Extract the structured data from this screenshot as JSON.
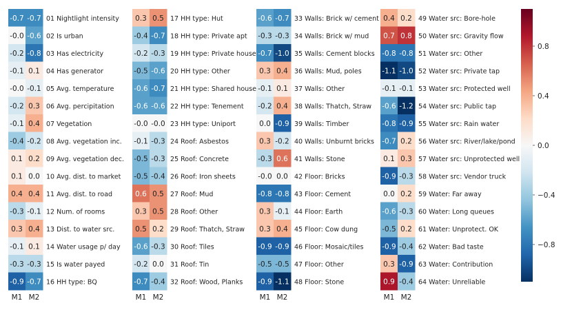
{
  "chart_data": {
    "type": "heatmap",
    "columns": [
      "M1",
      "M2"
    ],
    "panels": [
      {
        "rows": [
          {
            "label": "01 Nightlight intensity",
            "values": [
              -0.7,
              -0.7
            ],
            "text": [
              "-0.7",
              "-0.7"
            ]
          },
          {
            "label": "02 Is urban",
            "values": [
              0.0,
              -0.6
            ],
            "text": [
              "-0.0",
              "-0.6"
            ]
          },
          {
            "label": "03 Has electricity",
            "values": [
              -0.2,
              -0.8
            ],
            "text": [
              "-0.2",
              "-0.8"
            ]
          },
          {
            "label": "04 Has generator",
            "values": [
              -0.1,
              0.1
            ],
            "text": [
              "-0.1",
              "0.1"
            ]
          },
          {
            "label": "05 Avg. temperature",
            "values": [
              0.0,
              -0.1
            ],
            "text": [
              "-0.0",
              "-0.1"
            ]
          },
          {
            "label": "06 Avg. percipitation",
            "values": [
              -0.2,
              0.3
            ],
            "text": [
              "-0.2",
              "0.3"
            ]
          },
          {
            "label": "07 Vegetation",
            "values": [
              -0.1,
              0.4
            ],
            "text": [
              "-0.1",
              "0.4"
            ]
          },
          {
            "label": "08 Avg. vegetation inc.",
            "values": [
              -0.4,
              -0.2
            ],
            "text": [
              "-0.4",
              "-0.2"
            ]
          },
          {
            "label": "09 Avg. vegetation dec.",
            "values": [
              0.1,
              0.2
            ],
            "text": [
              "0.1",
              "0.2"
            ]
          },
          {
            "label": "10 Avg. dist. to market",
            "values": [
              0.1,
              0.0
            ],
            "text": [
              "0.1",
              "0.0"
            ]
          },
          {
            "label": "11 Avg. dist. to road",
            "values": [
              0.4,
              0.4
            ],
            "text": [
              "0.4",
              "0.4"
            ]
          },
          {
            "label": "12 Num. of rooms",
            "values": [
              -0.3,
              -0.1
            ],
            "text": [
              "-0.3",
              "-0.1"
            ]
          },
          {
            "label": "13 Dist. to water src.",
            "values": [
              0.3,
              0.4
            ],
            "text": [
              "0.3",
              "0.4"
            ]
          },
          {
            "label": "14 Water usage p/ day",
            "values": [
              -0.1,
              0.1
            ],
            "text": [
              "-0.1",
              "0.1"
            ]
          },
          {
            "label": "15 Is water payed",
            "values": [
              -0.3,
              -0.3
            ],
            "text": [
              "-0.3",
              "-0.3"
            ]
          },
          {
            "label": "16 HH type: BQ",
            "values": [
              -0.9,
              -0.7
            ],
            "text": [
              "-0.9",
              "-0.7"
            ]
          }
        ]
      },
      {
        "rows": [
          {
            "label": "17 HH type: Hut",
            "values": [
              0.3,
              0.5
            ],
            "text": [
              "0.3",
              "0.5"
            ]
          },
          {
            "label": "18 HH type: Private apt",
            "values": [
              -0.4,
              -0.7
            ],
            "text": [
              "-0.4",
              "-0.7"
            ]
          },
          {
            "label": "19 HH type: Private house",
            "values": [
              -0.2,
              -0.3
            ],
            "text": [
              "-0.2",
              "-0.3"
            ]
          },
          {
            "label": "20 HH type: Other",
            "values": [
              -0.5,
              -0.6
            ],
            "text": [
              "-0.5",
              "-0.6"
            ]
          },
          {
            "label": "21 HH type: Shared house",
            "values": [
              -0.6,
              -0.7
            ],
            "text": [
              "-0.6",
              "-0.7"
            ]
          },
          {
            "label": "22 HH type: Tenement",
            "values": [
              -0.6,
              -0.6
            ],
            "text": [
              "-0.6",
              "-0.6"
            ]
          },
          {
            "label": "23 HH type: Uniport",
            "values": [
              0.0,
              0.0
            ],
            "text": [
              "-0.0",
              "-0.0"
            ]
          },
          {
            "label": "24 Roof: Asbestos",
            "values": [
              -0.1,
              -0.3
            ],
            "text": [
              "-0.1",
              "-0.3"
            ]
          },
          {
            "label": "25 Roof: Concrete",
            "values": [
              -0.5,
              -0.3
            ],
            "text": [
              "-0.5",
              "-0.3"
            ]
          },
          {
            "label": "26 Roof: Iron sheets",
            "values": [
              -0.5,
              -0.4
            ],
            "text": [
              "-0.5",
              "-0.4"
            ]
          },
          {
            "label": "27 Roof: Mud",
            "values": [
              0.6,
              0.5
            ],
            "text": [
              "0.6",
              "0.5"
            ]
          },
          {
            "label": "28 Roof: Other",
            "values": [
              0.3,
              0.5
            ],
            "text": [
              "0.3",
              "0.5"
            ]
          },
          {
            "label": "29 Roof: Thatch, Straw",
            "values": [
              0.5,
              0.2
            ],
            "text": [
              "0.5",
              "0.2"
            ]
          },
          {
            "label": "30 Roof: Tiles",
            "values": [
              -0.6,
              -0.3
            ],
            "text": [
              "-0.6",
              "-0.3"
            ]
          },
          {
            "label": "31 Roof: Tin",
            "values": [
              -0.2,
              0.0
            ],
            "text": [
              "-0.2",
              "0.0"
            ]
          },
          {
            "label": "32 Roof: Wood, Planks",
            "values": [
              -0.7,
              -0.4
            ],
            "text": [
              "-0.7",
              "-0.4"
            ]
          }
        ]
      },
      {
        "rows": [
          {
            "label": "33 Walls: Brick w/ cement",
            "values": [
              -0.6,
              -0.7
            ],
            "text": [
              "-0.6",
              "-0.7"
            ]
          },
          {
            "label": "34 Walls: Brick w/ mud",
            "values": [
              -0.3,
              -0.3
            ],
            "text": [
              "-0.3",
              "-0.3"
            ]
          },
          {
            "label": "35 Walls: Cement blocks",
            "values": [
              -0.7,
              -1.0
            ],
            "text": [
              "-0.7",
              "-1.0"
            ]
          },
          {
            "label": "36 Walls: Mud, poles",
            "values": [
              0.3,
              0.4
            ],
            "text": [
              "0.3",
              "0.4"
            ]
          },
          {
            "label": "37 Walls: Other",
            "values": [
              -0.1,
              0.1
            ],
            "text": [
              "-0.1",
              "0.1"
            ]
          },
          {
            "label": "38 Walls: Thatch, Straw",
            "values": [
              -0.2,
              0.4
            ],
            "text": [
              "-0.2",
              "0.4"
            ]
          },
          {
            "label": "39 Walls: Timber",
            "values": [
              0.0,
              -0.9
            ],
            "text": [
              "0.0",
              "-0.9"
            ]
          },
          {
            "label": "40 Walls: Unburnt bricks",
            "values": [
              0.3,
              -0.2
            ],
            "text": [
              "0.3",
              "-0.2"
            ]
          },
          {
            "label": "41 Walls: Stone",
            "values": [
              -0.3,
              0.6
            ],
            "text": [
              "-0.3",
              "0.6"
            ]
          },
          {
            "label": "42 Floor: Bricks",
            "values": [
              0.0,
              0.0
            ],
            "text": [
              "-0.0",
              "0.0"
            ]
          },
          {
            "label": "43 Floor: Cement",
            "values": [
              -0.8,
              -0.8
            ],
            "text": [
              "-0.8",
              "-0.8"
            ]
          },
          {
            "label": "44 Floor: Earth",
            "values": [
              0.3,
              -0.1
            ],
            "text": [
              "0.3",
              "-0.1"
            ]
          },
          {
            "label": "45 Floor: Cow dung",
            "values": [
              0.3,
              0.4
            ],
            "text": [
              "0.3",
              "0.4"
            ]
          },
          {
            "label": "46 Floor: Mosaic/tiles",
            "values": [
              -0.9,
              -0.9
            ],
            "text": [
              "-0.9",
              "-0.9"
            ]
          },
          {
            "label": "47 Floor: Other",
            "values": [
              -0.5,
              -0.5
            ],
            "text": [
              "-0.5",
              "-0.5"
            ]
          },
          {
            "label": "48 Floor: Stone",
            "values": [
              -0.9,
              -1.1
            ],
            "text": [
              "-0.9",
              "-1.1"
            ]
          }
        ]
      },
      {
        "rows": [
          {
            "label": "49 Water src: Bore-hole",
            "values": [
              0.4,
              0.2
            ],
            "text": [
              "0.4",
              "0.2"
            ]
          },
          {
            "label": "50 Water src: Gravity flow",
            "values": [
              0.7,
              0.8
            ],
            "text": [
              "0.7",
              "0.8"
            ]
          },
          {
            "label": "51 Water src: Other",
            "values": [
              -0.8,
              -0.8
            ],
            "text": [
              "-0.8",
              "-0.8"
            ]
          },
          {
            "label": "52 Water src: Private tap",
            "values": [
              -1.1,
              -1.0
            ],
            "text": [
              "-1.1",
              "-1.0"
            ]
          },
          {
            "label": "53 Water src: Protected well",
            "values": [
              -0.1,
              -0.1
            ],
            "text": [
              "-0.1",
              "-0.1"
            ]
          },
          {
            "label": "54 Water src: Public tap",
            "values": [
              -0.6,
              -1.2
            ],
            "text": [
              "-0.6",
              "-1.2"
            ]
          },
          {
            "label": "55 Water src: Rain water",
            "values": [
              -0.8,
              -0.9
            ],
            "text": [
              "-0.8",
              "-0.9"
            ]
          },
          {
            "label": "56 Water src: River/lake/pond",
            "values": [
              -0.7,
              0.2
            ],
            "text": [
              "-0.7",
              "0.2"
            ]
          },
          {
            "label": "57 Water src: Unprotected well",
            "values": [
              0.1,
              0.3
            ],
            "text": [
              "0.1",
              "0.3"
            ]
          },
          {
            "label": "58 Water src: Vendor truck",
            "values": [
              -0.9,
              -0.3
            ],
            "text": [
              "-0.9",
              "-0.3"
            ]
          },
          {
            "label": "59 Water: Far away",
            "values": [
              0.0,
              0.2
            ],
            "text": [
              "0.0",
              "0.2"
            ]
          },
          {
            "label": "60 Water: Long queues",
            "values": [
              -0.6,
              -0.3
            ],
            "text": [
              "-0.6",
              "-0.3"
            ]
          },
          {
            "label": "61 Water: Unprotect. OK",
            "values": [
              -0.5,
              0.2
            ],
            "text": [
              "-0.5",
              "0.2"
            ]
          },
          {
            "label": "62 Water: Bad taste",
            "values": [
              -0.9,
              -0.4
            ],
            "text": [
              "-0.9",
              "-0.4"
            ]
          },
          {
            "label": "63 Water: Contribution",
            "values": [
              0.3,
              -0.9
            ],
            "text": [
              "0.3",
              "-0.9"
            ]
          },
          {
            "label": "64 Water: Unreliable",
            "values": [
              0.9,
              -0.4
            ],
            "text": [
              "0.9",
              "-0.4"
            ]
          }
        ]
      }
    ],
    "colorbar": {
      "colormap": "RdBu_r",
      "range": [
        -1.1,
        1.1
      ],
      "ticks": [
        0.8,
        0.4,
        0.0,
        -0.4,
        -0.8
      ],
      "tick_labels": [
        "0.8",
        "0.4",
        "0.0",
        "−0.4",
        "−0.8"
      ]
    },
    "title": "",
    "xlabel": "",
    "ylabel": ""
  }
}
